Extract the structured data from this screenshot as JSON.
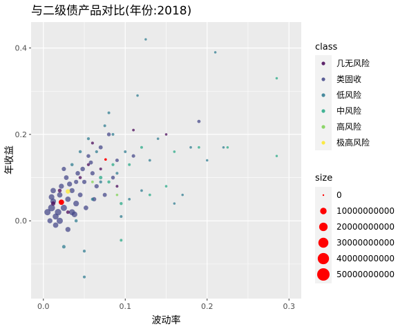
{
  "chart_data": {
    "type": "scatter",
    "title": "与二级债产品对比(年份:2018)",
    "xlabel": "波动率",
    "ylabel": "年收益",
    "xlim": [
      -0.015,
      0.315
    ],
    "ylim": [
      -0.18,
      0.46
    ],
    "x_ticks": [
      0.0,
      0.1,
      0.2,
      0.3
    ],
    "x_tick_labels": [
      "0.0",
      "0.1",
      "0.2",
      "0.3"
    ],
    "y_ticks": [
      0.0,
      0.2,
      0.4
    ],
    "y_tick_labels": [
      "0.0",
      "0.2",
      "0.4"
    ],
    "grid": true,
    "legend_placement": "right",
    "class_legend": {
      "title": "class",
      "entries": [
        {
          "label": "几无风险",
          "color": "#440154"
        },
        {
          "label": "类固收",
          "color": "#414487"
        },
        {
          "label": "低风险",
          "color": "#2A788E"
        },
        {
          "label": "中风险",
          "color": "#22A884"
        },
        {
          "label": "高风险",
          "color": "#7AD151"
        },
        {
          "label": "极高风险",
          "color": "#FDE725"
        }
      ]
    },
    "size_legend": {
      "title": "size",
      "color": "#FF0000",
      "entries": [
        {
          "label": "0",
          "value": 0
        },
        {
          "label": "10000000000",
          "value": 10000000000
        },
        {
          "label": "20000000000",
          "value": 20000000000
        },
        {
          "label": "30000000000",
          "value": 30000000000
        },
        {
          "label": "40000000000",
          "value": 40000000000
        },
        {
          "label": "50000000000",
          "value": 50000000000
        }
      ]
    },
    "series": [
      {
        "class": "类固收",
        "points": [
          [
            0.005,
            0.02,
            9000000000
          ],
          [
            0.01,
            0.03,
            12000000000
          ],
          [
            0.015,
            0.01,
            8000000000
          ],
          [
            0.012,
            0.045,
            7000000000
          ],
          [
            0.02,
            0.06,
            6000000000
          ],
          [
            0.008,
            0.0,
            5000000000
          ],
          [
            0.018,
            0.02,
            10000000000
          ],
          [
            0.025,
            0.03,
            9000000000
          ],
          [
            0.03,
            0.05,
            6000000000
          ],
          [
            0.022,
            0.08,
            5000000000
          ],
          [
            0.035,
            0.07,
            5000000000
          ],
          [
            0.028,
            0.1,
            4000000000
          ],
          [
            0.04,
            0.09,
            3000000000
          ],
          [
            0.045,
            0.06,
            4000000000
          ],
          [
            0.05,
            0.09,
            3000000000
          ],
          [
            0.015,
            -0.01,
            6000000000
          ],
          [
            0.03,
            -0.02,
            5000000000
          ],
          [
            0.025,
            0.12,
            3000000000
          ],
          [
            0.06,
            0.11,
            3000000000
          ],
          [
            0.055,
            0.15,
            2000000000
          ],
          [
            0.07,
            0.17,
            2500000000
          ],
          [
            0.08,
            0.2,
            2000000000
          ],
          [
            0.09,
            0.14,
            1500000000
          ],
          [
            0.035,
            0.02,
            8000000000
          ],
          [
            0.04,
            0.04,
            7000000000
          ],
          [
            0.012,
            0.07,
            6000000000
          ],
          [
            0.065,
            0.08,
            3000000000
          ],
          [
            0.048,
            0.12,
            3500000000
          ],
          [
            0.052,
            0.03,
            4000000000
          ],
          [
            0.075,
            0.06,
            2500000000
          ],
          [
            0.01,
            0.055,
            7000000000
          ],
          [
            0.032,
            0.085,
            5000000000
          ],
          [
            0.042,
            0.11,
            3500000000
          ],
          [
            0.058,
            0.135,
            2500000000
          ],
          [
            0.085,
            0.1,
            2000000000
          ],
          [
            0.19,
            0.23,
            1200000000
          ],
          [
            0.11,
            0.15,
            1500000000
          ],
          [
            0.02,
            0.0,
            9000000000
          ],
          [
            0.038,
            0.015,
            7000000000
          ],
          [
            0.062,
            0.05,
            3000000000
          ]
        ]
      },
      {
        "class": "几无风险",
        "points": [
          [
            0.012,
            0.04,
            3000000000
          ],
          [
            0.02,
            0.07,
            2000000000
          ],
          [
            0.03,
            0.02,
            1500000000
          ],
          [
            0.045,
            0.1,
            1000000000
          ],
          [
            0.055,
            0.13,
            800000000
          ],
          [
            0.06,
            0.18,
            600000000
          ],
          [
            0.07,
            0.12,
            600000000
          ],
          [
            0.11,
            0.21,
            400000000
          ],
          [
            0.15,
            0.2,
            300000000
          ],
          [
            0.09,
            0.08,
            500000000
          ]
        ]
      },
      {
        "class": "低风险",
        "points": [
          [
            0.025,
            -0.06,
            1500000000
          ],
          [
            0.04,
            0.0,
            1000000000
          ],
          [
            0.05,
            -0.13,
            600000000
          ],
          [
            0.05,
            -0.07,
            700000000
          ],
          [
            0.06,
            0.05,
            900000000
          ],
          [
            0.07,
            0.09,
            800000000
          ],
          [
            0.08,
            0.25,
            500000000
          ],
          [
            0.09,
            0.11,
            600000000
          ],
          [
            0.1,
            0.16,
            500000000
          ],
          [
            0.12,
            0.07,
            400000000
          ],
          [
            0.13,
            0.14,
            400000000
          ],
          [
            0.14,
            0.19,
            300000000
          ],
          [
            0.16,
            0.04,
            250000000
          ],
          [
            0.17,
            0.06,
            250000000
          ],
          [
            0.18,
            0.17,
            300000000
          ],
          [
            0.2,
            0.14,
            250000000
          ],
          [
            0.21,
            0.39,
            250000000
          ],
          [
            0.22,
            0.17,
            250000000
          ],
          [
            0.125,
            0.42,
            200000000
          ],
          [
            0.095,
            0.01,
            500000000
          ],
          [
            0.065,
            0.16,
            700000000
          ],
          [
            0.085,
            0.2,
            500000000
          ],
          [
            0.105,
            0.05,
            400000000
          ],
          [
            0.115,
            0.29,
            300000000
          ],
          [
            0.035,
            0.13,
            1000000000
          ],
          [
            0.045,
            0.16,
            900000000
          ],
          [
            0.075,
            0.22,
            500000000
          ],
          [
            0.055,
            0.19,
            700000000
          ]
        ]
      },
      {
        "class": "中风险",
        "points": [
          [
            0.07,
            0.1,
            1500000000
          ],
          [
            0.08,
            0.09,
            900000000
          ],
          [
            0.095,
            0.04,
            800000000
          ],
          [
            0.095,
            -0.045,
            500000000
          ],
          [
            0.105,
            0.13,
            500000000
          ],
          [
            0.12,
            0.17,
            500000000
          ],
          [
            0.13,
            0.06,
            400000000
          ],
          [
            0.15,
            0.08,
            300000000
          ],
          [
            0.16,
            0.16,
            300000000
          ],
          [
            0.19,
            0.17,
            300000000
          ],
          [
            0.225,
            0.17,
            250000000
          ],
          [
            0.285,
            0.33,
            250000000
          ],
          [
            0.285,
            0.15,
            200000000
          ],
          [
            0.085,
            0.13,
            700000000
          ]
        ]
      },
      {
        "class": "高风险",
        "points": [
          [
            0.06,
            0.09,
            400000000
          ],
          [
            0.09,
            0.06,
            300000000
          ]
        ]
      },
      {
        "class": "极高风险",
        "points": [
          [
            0.03,
            0.068,
            3500000000
          ]
        ]
      }
    ],
    "highlight_points": [
      {
        "x": 0.022,
        "y": 0.043,
        "size": 6000000000
      },
      {
        "x": 0.076,
        "y": 0.142,
        "size": 300000000
      }
    ]
  }
}
